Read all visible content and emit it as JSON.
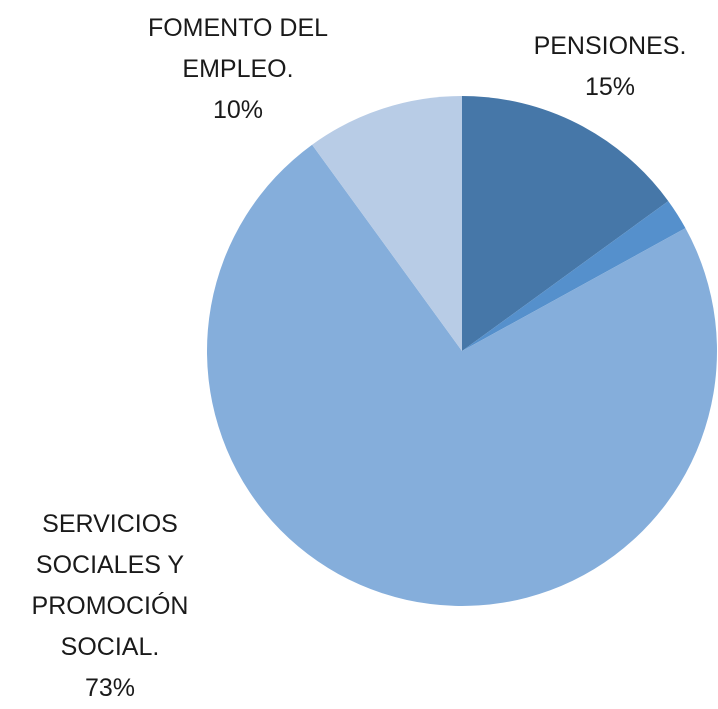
{
  "chart_data": {
    "type": "pie",
    "categories": [
      "PENSIONES.",
      null,
      "SERVICIOS SOCIALES Y PROMOCIÓN SOCIAL.",
      "FOMENTO DEL EMPLEO."
    ],
    "values": [
      15,
      2,
      73,
      10
    ],
    "value_labels": [
      "15%",
      null,
      "73%",
      "10%"
    ],
    "colors": [
      "#4677a8",
      "#5590cc",
      "#85aedb",
      "#b8cce6"
    ]
  }
}
